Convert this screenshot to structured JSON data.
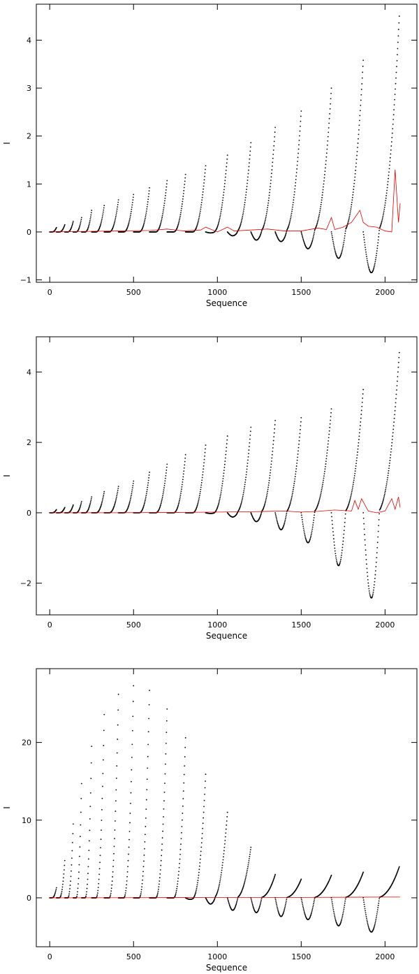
{
  "chart_data": [
    {
      "type": "scatter",
      "xlabel": "Sequence",
      "ylabel": "I",
      "xlim": [
        -80,
        2190
      ],
      "ylim": [
        -1.05,
        4.75
      ],
      "xticks": [
        0,
        500,
        1000,
        1500,
        2000
      ],
      "yticks": [
        -1,
        0,
        1,
        2,
        3,
        4
      ],
      "segments": [
        {
          "x0": 0,
          "x1": 40,
          "dip": 0,
          "peak": 0.09
        },
        {
          "x0": 40,
          "x1": 90,
          "dip": 0,
          "peak": 0.15
        },
        {
          "x0": 90,
          "x1": 140,
          "dip": 0,
          "peak": 0.22
        },
        {
          "x0": 140,
          "x1": 190,
          "dip": 0,
          "peak": 0.3
        },
        {
          "x0": 190,
          "x1": 250,
          "dip": 0,
          "peak": 0.45
        },
        {
          "x0": 250,
          "x1": 325,
          "dip": 0,
          "peak": 0.55
        },
        {
          "x0": 325,
          "x1": 410,
          "dip": 0,
          "peak": 0.67
        },
        {
          "x0": 410,
          "x1": 500,
          "dip": 0,
          "peak": 0.78
        },
        {
          "x0": 500,
          "x1": 595,
          "dip": 0,
          "peak": 0.92
        },
        {
          "x0": 595,
          "x1": 700,
          "dip": 0,
          "peak": 1.07
        },
        {
          "x0": 700,
          "x1": 810,
          "dip": 0,
          "peak": 1.2
        },
        {
          "x0": 810,
          "x1": 930,
          "dip": 0,
          "peak": 1.38
        },
        {
          "x0": 930,
          "x1": 1060,
          "dip": -0.02,
          "peak": 1.6
        },
        {
          "x0": 1060,
          "x1": 1200,
          "dip": -0.08,
          "peak": 1.86
        },
        {
          "x0": 1200,
          "x1": 1345,
          "dip": -0.17,
          "peak": 2.18
        },
        {
          "x0": 1345,
          "x1": 1500,
          "dip": -0.2,
          "peak": 2.52
        },
        {
          "x0": 1500,
          "x1": 1680,
          "dip": -0.35,
          "peak": 3.0
        },
        {
          "x0": 1680,
          "x1": 1870,
          "dip": -0.55,
          "peak": 3.58
        },
        {
          "x0": 1870,
          "x1": 2085,
          "dip": -0.85,
          "peak": 4.5
        }
      ],
      "red_series": {
        "x": [
          0,
          200,
          400,
          600,
          700,
          800,
          900,
          930,
          1000,
          1060,
          1100,
          1200,
          1300,
          1400,
          1500,
          1600,
          1650,
          1680,
          1700,
          1750,
          1800,
          1850,
          1870,
          1900,
          1950,
          2000,
          2040,
          2060,
          2080,
          2090
        ],
        "y": [
          0.0,
          0.01,
          0.02,
          0.03,
          0.06,
          0.02,
          0.04,
          0.1,
          0.0,
          0.1,
          0.02,
          0.04,
          0.06,
          0.02,
          0.02,
          0.08,
          0.05,
          0.3,
          0.05,
          0.1,
          0.2,
          0.45,
          0.2,
          0.12,
          0.1,
          0.02,
          0.0,
          1.3,
          0.2,
          0.6
        ]
      }
    },
    {
      "type": "scatter",
      "xlabel": "Sequence",
      "ylabel": "I",
      "xlim": [
        -80,
        2190
      ],
      "ylim": [
        -2.9,
        5.0
      ],
      "xticks": [
        0,
        500,
        1000,
        1500,
        2000
      ],
      "yticks": [
        -2,
        0,
        2,
        4
      ],
      "segments": [
        {
          "x0": 0,
          "x1": 40,
          "dip": 0,
          "peak": 0.09
        },
        {
          "x0": 40,
          "x1": 90,
          "dip": 0,
          "peak": 0.15
        },
        {
          "x0": 90,
          "x1": 140,
          "dip": 0,
          "peak": 0.22
        },
        {
          "x0": 140,
          "x1": 190,
          "dip": 0,
          "peak": 0.32
        },
        {
          "x0": 190,
          "x1": 250,
          "dip": 0,
          "peak": 0.45
        },
        {
          "x0": 250,
          "x1": 325,
          "dip": 0,
          "peak": 0.6
        },
        {
          "x0": 325,
          "x1": 410,
          "dip": 0,
          "peak": 0.75
        },
        {
          "x0": 410,
          "x1": 500,
          "dip": 0,
          "peak": 0.9
        },
        {
          "x0": 500,
          "x1": 595,
          "dip": 0,
          "peak": 1.15
        },
        {
          "x0": 595,
          "x1": 700,
          "dip": 0,
          "peak": 1.38
        },
        {
          "x0": 700,
          "x1": 810,
          "dip": 0,
          "peak": 1.65
        },
        {
          "x0": 810,
          "x1": 930,
          "dip": 0,
          "peak": 1.92
        },
        {
          "x0": 930,
          "x1": 1060,
          "dip": -0.02,
          "peak": 2.18
        },
        {
          "x0": 1060,
          "x1": 1200,
          "dip": -0.12,
          "peak": 2.43
        },
        {
          "x0": 1200,
          "x1": 1345,
          "dip": -0.25,
          "peak": 2.62
        },
        {
          "x0": 1345,
          "x1": 1500,
          "dip": -0.48,
          "peak": 2.7
        },
        {
          "x0": 1500,
          "x1": 1680,
          "dip": -0.85,
          "peak": 2.95
        },
        {
          "x0": 1680,
          "x1": 1870,
          "dip": -1.5,
          "peak": 3.5
        },
        {
          "x0": 1870,
          "x1": 2085,
          "dip": -2.42,
          "peak": 4.55
        }
      ],
      "red_series": {
        "x": [
          0,
          400,
          800,
          1000,
          1200,
          1400,
          1500,
          1600,
          1700,
          1800,
          1820,
          1840,
          1860,
          1900,
          1950,
          2000,
          2040,
          2060,
          2080,
          2090
        ],
        "y": [
          0.0,
          0.0,
          0.01,
          0.02,
          0.03,
          0.05,
          0.02,
          0.04,
          0.08,
          0.05,
          0.35,
          0.1,
          0.4,
          0.05,
          0.0,
          0.05,
          0.4,
          0.1,
          0.45,
          0.15
        ]
      }
    },
    {
      "type": "scatter",
      "xlabel": "Sequence",
      "ylabel": "I",
      "xlim": [
        -80,
        2190
      ],
      "ylim": [
        -6.3,
        29.5
      ],
      "xticks": [
        0,
        500,
        1000,
        1500,
        2000
      ],
      "yticks": [
        0,
        10,
        20
      ],
      "segments": [
        {
          "x0": 0,
          "x1": 40,
          "dip": 0,
          "peak": 1.3
        },
        {
          "x0": 40,
          "x1": 90,
          "dip": 0,
          "peak": 4.8
        },
        {
          "x0": 90,
          "x1": 140,
          "dip": 0,
          "peak": 9.5
        },
        {
          "x0": 140,
          "x1": 190,
          "dip": 0,
          "peak": 14.7
        },
        {
          "x0": 190,
          "x1": 250,
          "dip": 0,
          "peak": 19.5
        },
        {
          "x0": 250,
          "x1": 325,
          "dip": 0,
          "peak": 23.6
        },
        {
          "x0": 325,
          "x1": 410,
          "dip": 0,
          "peak": 26.2
        },
        {
          "x0": 410,
          "x1": 500,
          "dip": 0,
          "peak": 27.3
        },
        {
          "x0": 500,
          "x1": 595,
          "dip": 0,
          "peak": 26.7
        },
        {
          "x0": 595,
          "x1": 700,
          "dip": 0,
          "peak": 24.3
        },
        {
          "x0": 700,
          "x1": 810,
          "dip": 0,
          "peak": 20.6
        },
        {
          "x0": 810,
          "x1": 930,
          "dip": -0.2,
          "peak": 15.9
        },
        {
          "x0": 930,
          "x1": 1060,
          "dip": -0.8,
          "peak": 11.0
        },
        {
          "x0": 1060,
          "x1": 1200,
          "dip": -1.6,
          "peak": 6.5
        },
        {
          "x0": 1200,
          "x1": 1345,
          "dip": -1.9,
          "peak": 3.0
        },
        {
          "x0": 1345,
          "x1": 1500,
          "dip": -2.4,
          "peak": 2.4
        },
        {
          "x0": 1500,
          "x1": 1680,
          "dip": -2.8,
          "peak": 2.9
        },
        {
          "x0": 1680,
          "x1": 1870,
          "dip": -3.6,
          "peak": 3.3
        },
        {
          "x0": 1870,
          "x1": 2085,
          "dip": -4.4,
          "peak": 4.0
        }
      ],
      "red_series": {
        "x": [
          0,
          500,
          1000,
          1500,
          2000,
          2090
        ],
        "y": [
          0.0,
          0.02,
          0.05,
          0.05,
          0.1,
          0.1
        ]
      }
    }
  ]
}
